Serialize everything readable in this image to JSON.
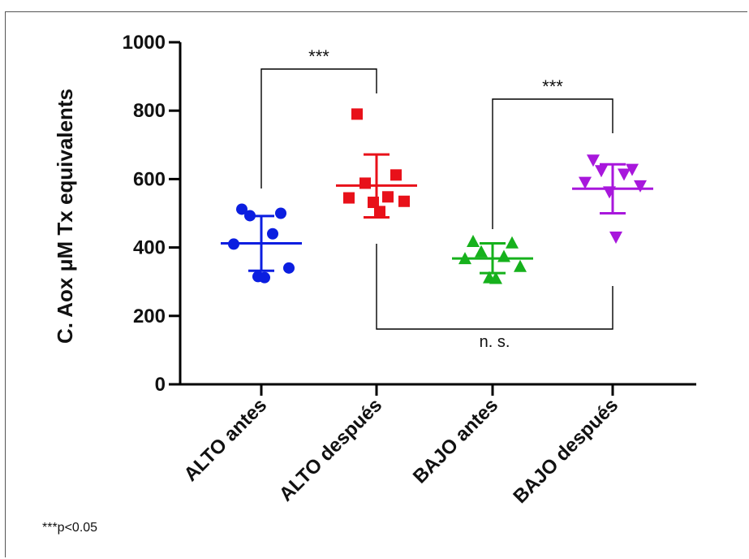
{
  "chart_data": {
    "type": "scatter",
    "ylabel": "C. Aox μM Tx equivalents",
    "ylim": [
      0,
      1000
    ],
    "yticks": [
      "0",
      "200",
      "400",
      "600",
      "800",
      "1000"
    ],
    "categories": [
      "ALTO antes",
      "ALTO después",
      "BAJO antes",
      "BAJO después"
    ],
    "series": [
      {
        "category": "ALTO antes",
        "color": "#0b1ee0",
        "marker": "circle",
        "values": [
          512,
          500,
          493,
          440,
          410,
          340,
          315,
          312
        ],
        "mean": 412,
        "sd_upper": 492,
        "sd_lower": 332
      },
      {
        "category": "ALTO después",
        "color": "#e8111a",
        "marker": "square",
        "values": [
          790,
          612,
          588,
          548,
          545,
          535,
          532,
          505
        ],
        "mean": 581,
        "sd_upper": 672,
        "sd_lower": 488
      },
      {
        "category": "BAJO antes",
        "color": "#16b11c",
        "marker": "triangle-up",
        "values": [
          418,
          414,
          388,
          374,
          368,
          345,
          312,
          310
        ],
        "mean": 368,
        "sd_upper": 412,
        "sd_lower": 325
      },
      {
        "category": "BAJO después",
        "color": "#a817dc",
        "marker": "triangle-down",
        "values": [
          655,
          628,
          624,
          614,
          590,
          580,
          562,
          430
        ],
        "mean": 572,
        "sd_upper": 643,
        "sd_lower": 500
      }
    ],
    "annotations": [
      {
        "label": "***",
        "from": "ALTO antes",
        "to": "ALTO después",
        "position": "above"
      },
      {
        "label": "***",
        "from": "BAJO antes",
        "to": "BAJO después",
        "position": "above"
      },
      {
        "label": "n. s.",
        "from": "ALTO después",
        "to": "BAJO después",
        "position": "below"
      }
    ]
  },
  "footnote": "***p<0.05"
}
